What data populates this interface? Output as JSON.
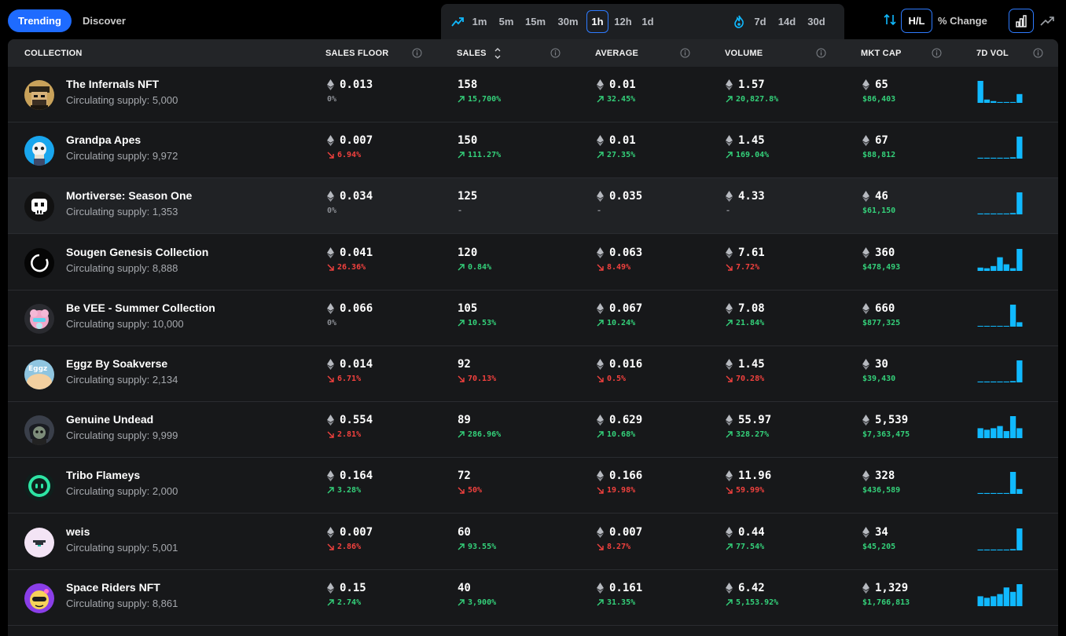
{
  "tabs": {
    "trending": "Trending",
    "discover": "Discover"
  },
  "timeframes": [
    "1m",
    "5m",
    "15m",
    "30m",
    "1h",
    "12h",
    "1d"
  ],
  "active_timeframe": "1h",
  "long_timeframes": [
    "7d",
    "14d",
    "30d"
  ],
  "toggles": {
    "hl": "H/L",
    "pct_change": "% Change"
  },
  "columns": {
    "collection": "COLLECTION",
    "sales_floor": "SALES FLOOR",
    "sales": "SALES",
    "average": "AVERAGE",
    "volume": "VOLUME",
    "mkt_cap": "MKT CAP",
    "vol7d": "7D VOL"
  },
  "colors": {
    "accent": "#1e6bff",
    "up": "#34d17a",
    "down": "#f2413e",
    "spark": "#10b9ff"
  },
  "rows": [
    {
      "name": "The Infernals NFT",
      "supply": "Circulating supply: 5,000",
      "avatar": "infernals",
      "floor": "0.013",
      "floor_chg": "0%",
      "floor_dir": "flat",
      "sales": "158",
      "sales_chg": "15,700%",
      "sales_dir": "up",
      "avg": "0.01",
      "avg_chg": "32.45%",
      "avg_dir": "up",
      "vol": "1.57",
      "vol_chg": "20,827.8%",
      "vol_dir": "up",
      "cap": "65",
      "cap_usd": "$86,403",
      "spark": [
        1,
        0.15,
        0.08,
        0.04,
        0.04,
        0.04,
        0.4
      ]
    },
    {
      "name": "Grandpa Apes",
      "supply": "Circulating supply: 9,972",
      "avatar": "grandpa",
      "floor": "0.007",
      "floor_chg": "6.94%",
      "floor_dir": "down",
      "sales": "150",
      "sales_chg": "111.27%",
      "sales_dir": "up",
      "avg": "0.01",
      "avg_chg": "27.35%",
      "avg_dir": "up",
      "vol": "1.45",
      "vol_chg": "169.04%",
      "vol_dir": "up",
      "cap": "67",
      "cap_usd": "$88,812",
      "spark": [
        0.04,
        0.04,
        0.04,
        0.04,
        0.04,
        0.06,
        1
      ]
    },
    {
      "name": "Mortiverse: Season One",
      "supply": "Circulating supply: 1,353",
      "avatar": "mortiverse",
      "floor": "0.034",
      "floor_chg": "0%",
      "floor_dir": "flat",
      "sales": "125",
      "sales_chg": "-",
      "sales_dir": "flat",
      "avg": "0.035",
      "avg_chg": "-",
      "avg_dir": "flat",
      "vol": "4.33",
      "vol_chg": "-",
      "vol_dir": "flat",
      "cap": "46",
      "cap_usd": "$61,150",
      "spark": [
        0.04,
        0.04,
        0.04,
        0.04,
        0.04,
        0.06,
        1
      ]
    },
    {
      "name": "Sougen Genesis Collection",
      "supply": "Circulating supply: 8,888",
      "avatar": "sougen",
      "floor": "0.041",
      "floor_chg": "26.36%",
      "floor_dir": "down",
      "sales": "120",
      "sales_chg": "0.84%",
      "sales_dir": "up",
      "avg": "0.063",
      "avg_chg": "8.49%",
      "avg_dir": "down",
      "vol": "7.61",
      "vol_chg": "7.72%",
      "vol_dir": "down",
      "cap": "360",
      "cap_usd": "$478,493",
      "spark": [
        0.15,
        0.12,
        0.22,
        0.62,
        0.3,
        0.12,
        1
      ]
    },
    {
      "name": "Be VEE - Summer Collection",
      "supply": "Circulating supply: 10,000",
      "avatar": "bevee",
      "floor": "0.066",
      "floor_chg": "0%",
      "floor_dir": "flat",
      "sales": "105",
      "sales_chg": "10.53%",
      "sales_dir": "up",
      "avg": "0.067",
      "avg_chg": "10.24%",
      "avg_dir": "up",
      "vol": "7.08",
      "vol_chg": "21.84%",
      "vol_dir": "up",
      "cap": "660",
      "cap_usd": "$877,325",
      "spark": [
        0.02,
        0.02,
        0.02,
        0.02,
        0.02,
        1,
        0.2
      ]
    },
    {
      "name": "Eggz By Soakverse",
      "supply": "Circulating supply: 2,134",
      "avatar": "eggz",
      "floor": "0.014",
      "floor_chg": "6.71%",
      "floor_dir": "down",
      "sales": "92",
      "sales_chg": "70.13%",
      "sales_dir": "down",
      "avg": "0.016",
      "avg_chg": "0.5%",
      "avg_dir": "down",
      "vol": "1.45",
      "vol_chg": "70.28%",
      "vol_dir": "down",
      "cap": "30",
      "cap_usd": "$39,430",
      "spark": [
        0.04,
        0.04,
        0.04,
        0.04,
        0.04,
        0.06,
        1
      ]
    },
    {
      "name": "Genuine Undead",
      "supply": "Circulating supply: 9,999",
      "avatar": "undead",
      "floor": "0.554",
      "floor_chg": "2.81%",
      "floor_dir": "down",
      "sales": "89",
      "sales_chg": "286.96%",
      "sales_dir": "up",
      "avg": "0.629",
      "avg_chg": "10.68%",
      "avg_dir": "up",
      "vol": "55.97",
      "vol_chg": "328.27%",
      "vol_dir": "up",
      "cap": "5,539",
      "cap_usd": "$7,363,475",
      "spark": [
        0.45,
        0.38,
        0.45,
        0.55,
        0.32,
        1,
        0.45
      ]
    },
    {
      "name": "Tribo Flameys",
      "supply": "Circulating supply: 2,000",
      "avatar": "tribo",
      "floor": "0.164",
      "floor_chg": "3.28%",
      "floor_dir": "up",
      "sales": "72",
      "sales_chg": "50%",
      "sales_dir": "down",
      "avg": "0.166",
      "avg_chg": "19.98%",
      "avg_dir": "down",
      "vol": "11.96",
      "vol_chg": "59.99%",
      "vol_dir": "down",
      "cap": "328",
      "cap_usd": "$436,589",
      "spark": [
        0.04,
        0.04,
        0.04,
        0.04,
        0.04,
        1,
        0.22
      ]
    },
    {
      "name": "weis",
      "supply": "Circulating supply: 5,001",
      "avatar": "weis",
      "floor": "0.007",
      "floor_chg": "2.86%",
      "floor_dir": "down",
      "sales": "60",
      "sales_chg": "93.55%",
      "sales_dir": "up",
      "avg": "0.007",
      "avg_chg": "8.27%",
      "avg_dir": "down",
      "vol": "0.44",
      "vol_chg": "77.54%",
      "vol_dir": "up",
      "cap": "34",
      "cap_usd": "$45,205",
      "spark": [
        0.04,
        0.04,
        0.04,
        0.04,
        0.04,
        0.06,
        1
      ]
    },
    {
      "name": "Space Riders NFT",
      "supply": "Circulating supply: 8,861",
      "avatar": "space",
      "floor": "0.15",
      "floor_chg": "2.74%",
      "floor_dir": "up",
      "sales": "40",
      "sales_chg": "3,900%",
      "sales_dir": "up",
      "avg": "0.161",
      "avg_chg": "31.35%",
      "avg_dir": "up",
      "vol": "6.42",
      "vol_chg": "5,153.92%",
      "vol_dir": "up",
      "cap": "1,329",
      "cap_usd": "$1,766,813",
      "spark": [
        0.45,
        0.38,
        0.45,
        0.55,
        0.85,
        0.65,
        1
      ]
    }
  ]
}
